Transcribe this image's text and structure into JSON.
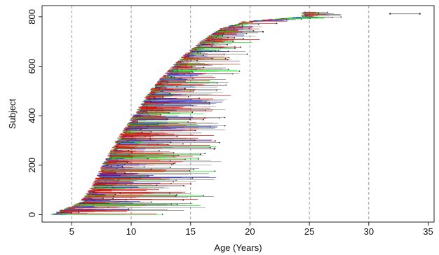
{
  "chart_data": {
    "type": "line",
    "title": "",
    "xlabel": "Age (Years)",
    "ylabel": "Subject",
    "xlim": [
      2.5,
      35.5
    ],
    "ylim": [
      -30,
      845
    ],
    "x_ticks": [
      5,
      10,
      15,
      20,
      25,
      30,
      35
    ],
    "y_ticks": [
      0,
      200,
      400,
      600,
      800
    ],
    "x_tick_labels": [
      "5",
      "10",
      "15",
      "20",
      "25",
      "30",
      "35"
    ],
    "y_tick_labels": [
      "0",
      "200",
      "400",
      "600",
      "800"
    ],
    "vertical_reference_lines": [
      5,
      10,
      15,
      20,
      25,
      30
    ],
    "grid": false,
    "legend": null,
    "segment_colors": [
      "#d9150f",
      "#1d2ee6",
      "#16e81b",
      "#9a9a9a"
    ],
    "subject_count": 820,
    "onset_curve": {
      "description_points_subject": [
        0,
        50,
        100,
        150,
        200,
        300,
        400,
        500,
        550,
        600,
        650,
        700,
        750,
        780,
        800
      ],
      "description_points_age_start": [
        3.3,
        5.8,
        6.6,
        7.2,
        7.7,
        8.9,
        10.3,
        11.7,
        12.6,
        13.6,
        14.7,
        16.0,
        17.5,
        19.5,
        24.5
      ]
    },
    "follow_up_span_years": {
      "min": 0.3,
      "max": 12.0
    },
    "outlier_segment": {
      "subject": 812,
      "start": 31.8,
      "end": 34.3
    }
  }
}
